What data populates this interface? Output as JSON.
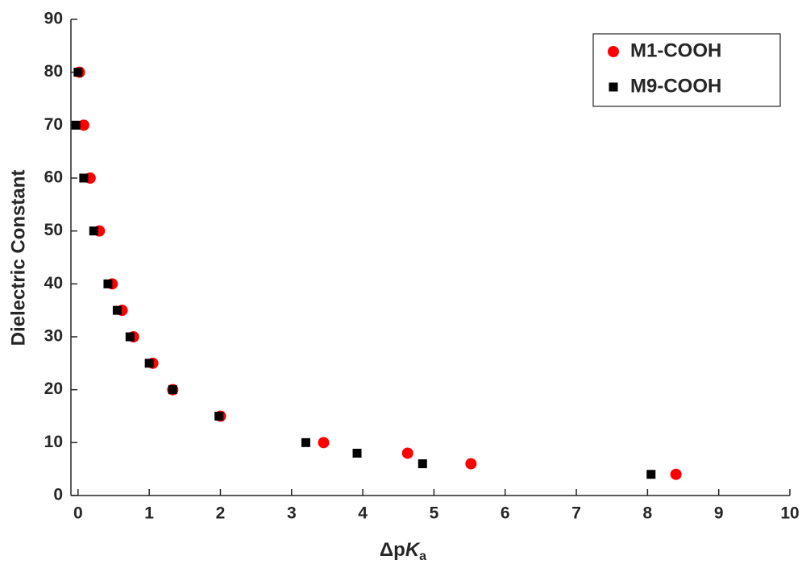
{
  "chart_data": {
    "type": "scatter",
    "x_label": [
      "Δp",
      "K",
      "a"
    ],
    "y_label": "Dielectric Constant",
    "xlim": [
      -0.1,
      10
    ],
    "ylim": [
      0,
      90
    ],
    "xticks": [
      0,
      1,
      2,
      3,
      4,
      5,
      6,
      7,
      8,
      9,
      10
    ],
    "yticks": [
      0,
      10,
      20,
      30,
      40,
      50,
      60,
      70,
      80,
      90
    ],
    "grid": false,
    "legend": "upper right",
    "series": [
      {
        "name": "M1-COOH",
        "color": "#ff0000",
        "marker": "circle",
        "x": [
          0.02,
          0.08,
          0.17,
          0.3,
          0.48,
          0.62,
          0.78,
          1.05,
          1.33,
          2.0,
          3.45,
          4.63,
          5.52,
          8.4
        ],
        "values": [
          80,
          70,
          60,
          50,
          40,
          35,
          30,
          25,
          20,
          15,
          10,
          8,
          6,
          4
        ]
      },
      {
        "name": "M9-COOH",
        "color": "#000000",
        "marker": "square",
        "x": [
          0.0,
          -0.03,
          0.08,
          0.22,
          0.42,
          0.55,
          0.73,
          1.0,
          1.33,
          1.98,
          3.2,
          3.92,
          4.84,
          8.05
        ],
        "values": [
          80,
          70,
          60,
          50,
          40,
          35,
          30,
          25,
          20,
          15,
          10,
          8,
          6,
          4
        ]
      }
    ]
  }
}
